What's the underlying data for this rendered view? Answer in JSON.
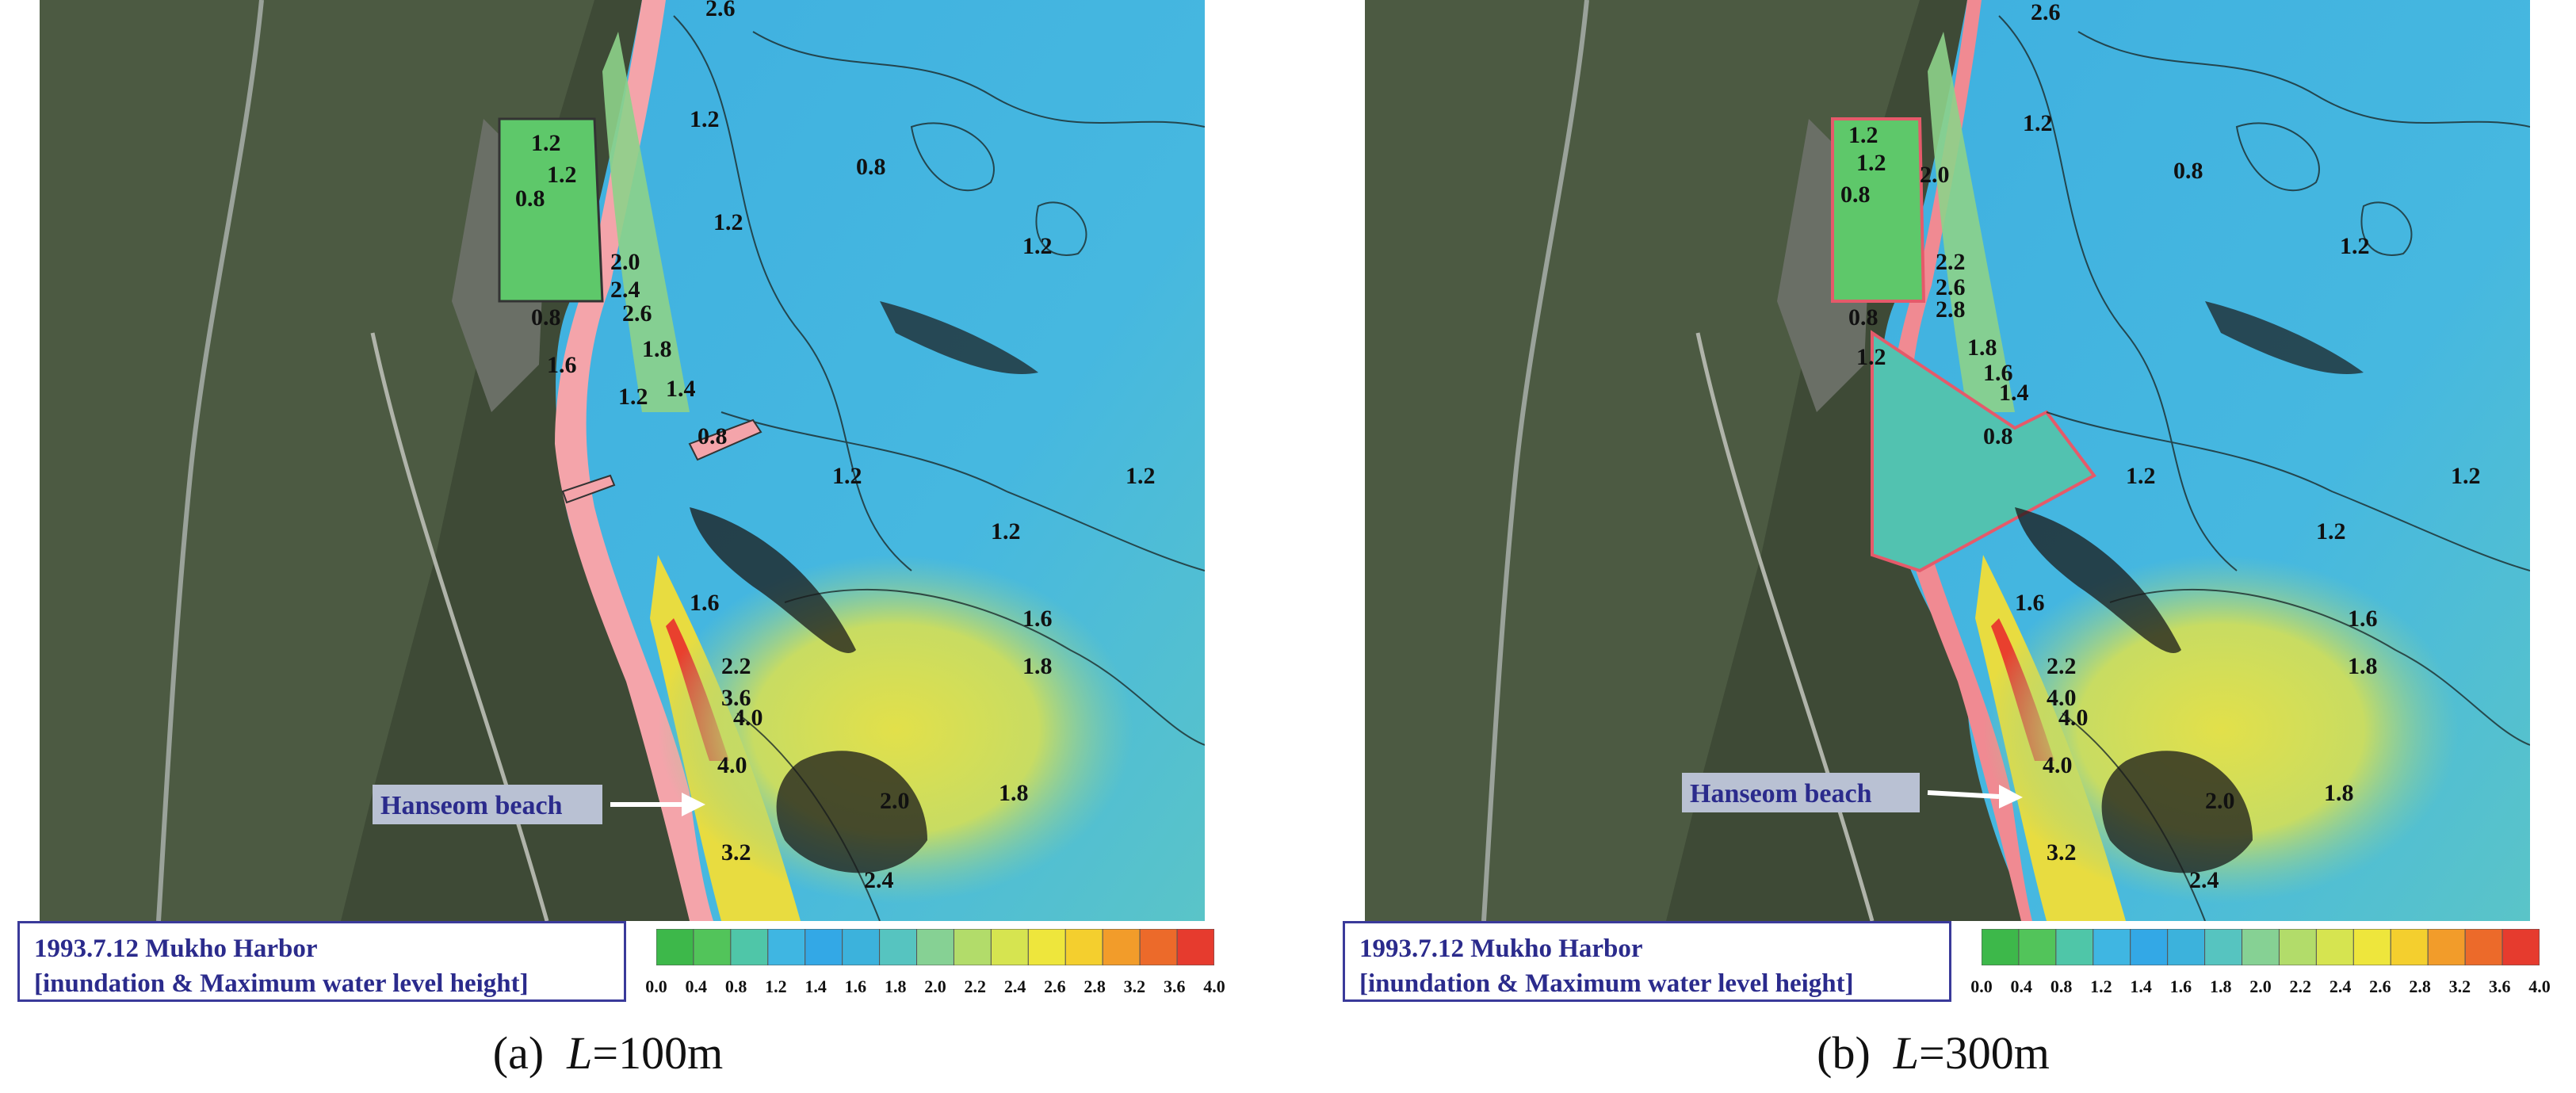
{
  "panels": [
    {
      "caption_prefix": "(a)",
      "caption_var": "L",
      "caption_value": "=100m",
      "legend_line1": "1993.7.12 Mukho Harbor",
      "legend_line2": "[inundation & Maximum water level height]",
      "beach_label": "Hanseom beach",
      "contour_labels": [
        "1.2",
        "0.8",
        "1.2",
        "1.2",
        "0.8",
        "1.2",
        "0.8",
        "1.2",
        "2.0",
        "2.4",
        "2.6",
        "1.8",
        "1.6",
        "1.4",
        "1.2",
        "0.8",
        "1.2",
        "1.2",
        "1.2",
        "1.6",
        "1.8",
        "1.6",
        "2.2",
        "3.6",
        "4.0",
        "4.0",
        "2.0",
        "1.8",
        "3.2",
        "2.4",
        "2.6"
      ]
    },
    {
      "caption_prefix": "(b)",
      "caption_var": "L",
      "caption_value": "=300m",
      "legend_line1": "1993.7.12 Mukho Harbor",
      "legend_line2": "[inundation & Maximum water level height]",
      "beach_label": "Hanseom beach",
      "contour_labels": [
        "1.2",
        "0.8",
        "1.2",
        "1.2",
        "0.8",
        "1.2",
        "0.8",
        "2.0",
        "2.2",
        "2.6",
        "2.8",
        "1.8",
        "1.6",
        "1.4",
        "1.2",
        "0.8",
        "1.2",
        "1.2",
        "1.2",
        "1.6",
        "1.8",
        "1.6",
        "2.2",
        "4.0",
        "4.0",
        "4.0",
        "2.0",
        "1.8",
        "3.2",
        "2.4",
        "2.6"
      ]
    }
  ],
  "colorbar": {
    "ticks": [
      "0.0",
      "0.4",
      "0.8",
      "1.2",
      "1.4",
      "1.6",
      "1.8",
      "2.0",
      "2.2",
      "2.4",
      "2.6",
      "2.8",
      "3.2",
      "3.6",
      "4.0"
    ],
    "colors": [
      "#3db84a",
      "#52c45a",
      "#4fc6a8",
      "#3fb6e2",
      "#33a8e6",
      "#3cb2dc",
      "#56c4c0",
      "#86d194",
      "#b2dc6a",
      "#d6e450",
      "#eee63c",
      "#f4cf2e",
      "#f29c2a",
      "#ec6a2a",
      "#e63b2e"
    ]
  }
}
